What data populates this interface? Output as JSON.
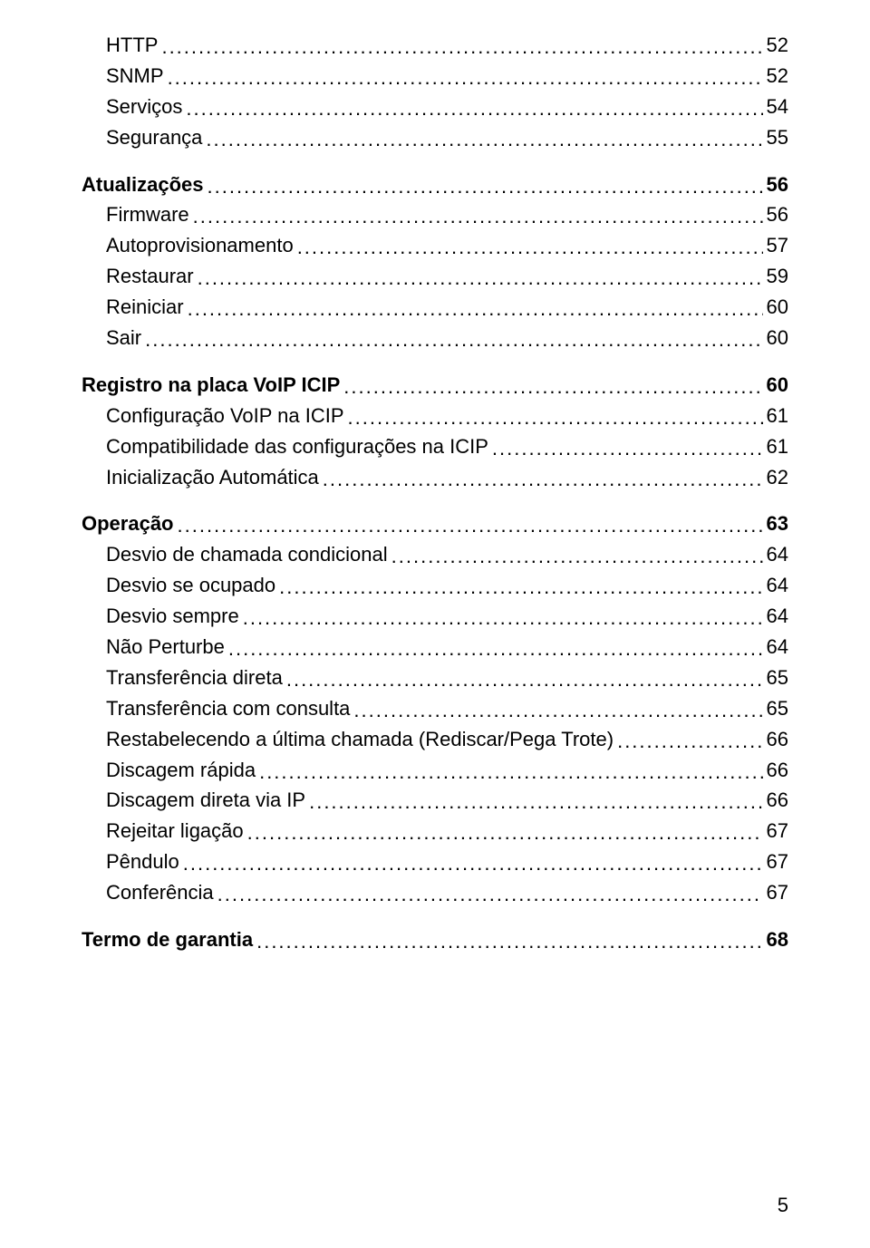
{
  "entries": [
    {
      "indent": 1,
      "bold": false,
      "label": "HTTP",
      "page": "52"
    },
    {
      "indent": 1,
      "bold": false,
      "label": "SNMP",
      "page": "52"
    },
    {
      "indent": 1,
      "bold": false,
      "label": "Serviços",
      "page": "54"
    },
    {
      "indent": 1,
      "bold": false,
      "label": "Segurança",
      "page": "55"
    },
    {
      "gap": true
    },
    {
      "indent": 0,
      "bold": true,
      "label": "Atualizações",
      "page": "56"
    },
    {
      "indent": 1,
      "bold": false,
      "label": "Firmware",
      "page": "56"
    },
    {
      "indent": 1,
      "bold": false,
      "label": "Autoprovisionamento",
      "page": "57"
    },
    {
      "indent": 1,
      "bold": false,
      "label": "Restaurar",
      "page": "59"
    },
    {
      "indent": 1,
      "bold": false,
      "label": "Reiniciar",
      "page": "60"
    },
    {
      "indent": 1,
      "bold": false,
      "label": "Sair",
      "page": "60"
    },
    {
      "gap": true
    },
    {
      "indent": 0,
      "bold": true,
      "label": "Registro na placa VoIP ICIP",
      "page": "60"
    },
    {
      "indent": 1,
      "bold": false,
      "label": "Configuração VoIP na ICIP",
      "page": "61"
    },
    {
      "indent": 1,
      "bold": false,
      "label": "Compatibilidade das configurações na ICIP",
      "page": "61"
    },
    {
      "indent": 1,
      "bold": false,
      "label": "Inicialização Automática",
      "page": "62"
    },
    {
      "gap": true
    },
    {
      "indent": 0,
      "bold": true,
      "label": "Operação",
      "page": "63"
    },
    {
      "indent": 1,
      "bold": false,
      "label": "Desvio de chamada condicional",
      "page": "64"
    },
    {
      "indent": 1,
      "bold": false,
      "label": "Desvio se ocupado",
      "page": "64"
    },
    {
      "indent": 1,
      "bold": false,
      "label": "Desvio sempre",
      "page": "64"
    },
    {
      "indent": 1,
      "bold": false,
      "label": "Não Perturbe",
      "page": "64"
    },
    {
      "indent": 1,
      "bold": false,
      "label": "Transferência direta",
      "page": "65"
    },
    {
      "indent": 1,
      "bold": false,
      "label": "Transferência com consulta",
      "page": "65"
    },
    {
      "indent": 1,
      "bold": false,
      "label": "Restabelecendo a última chamada (Rediscar/Pega Trote)",
      "page": "66"
    },
    {
      "indent": 1,
      "bold": false,
      "label": "Discagem rápida",
      "page": "66"
    },
    {
      "indent": 1,
      "bold": false,
      "label": "Discagem direta via IP",
      "page": "66"
    },
    {
      "indent": 1,
      "bold": false,
      "label": "Rejeitar ligação",
      "page": "67"
    },
    {
      "indent": 1,
      "bold": false,
      "label": "Pêndulo",
      "page": "67"
    },
    {
      "indent": 1,
      "bold": false,
      "label": "Conferência",
      "page": "67"
    },
    {
      "gap": true
    },
    {
      "indent": 0,
      "bold": true,
      "label": "Termo de garantia",
      "page": "68"
    }
  ],
  "page_number": "5"
}
